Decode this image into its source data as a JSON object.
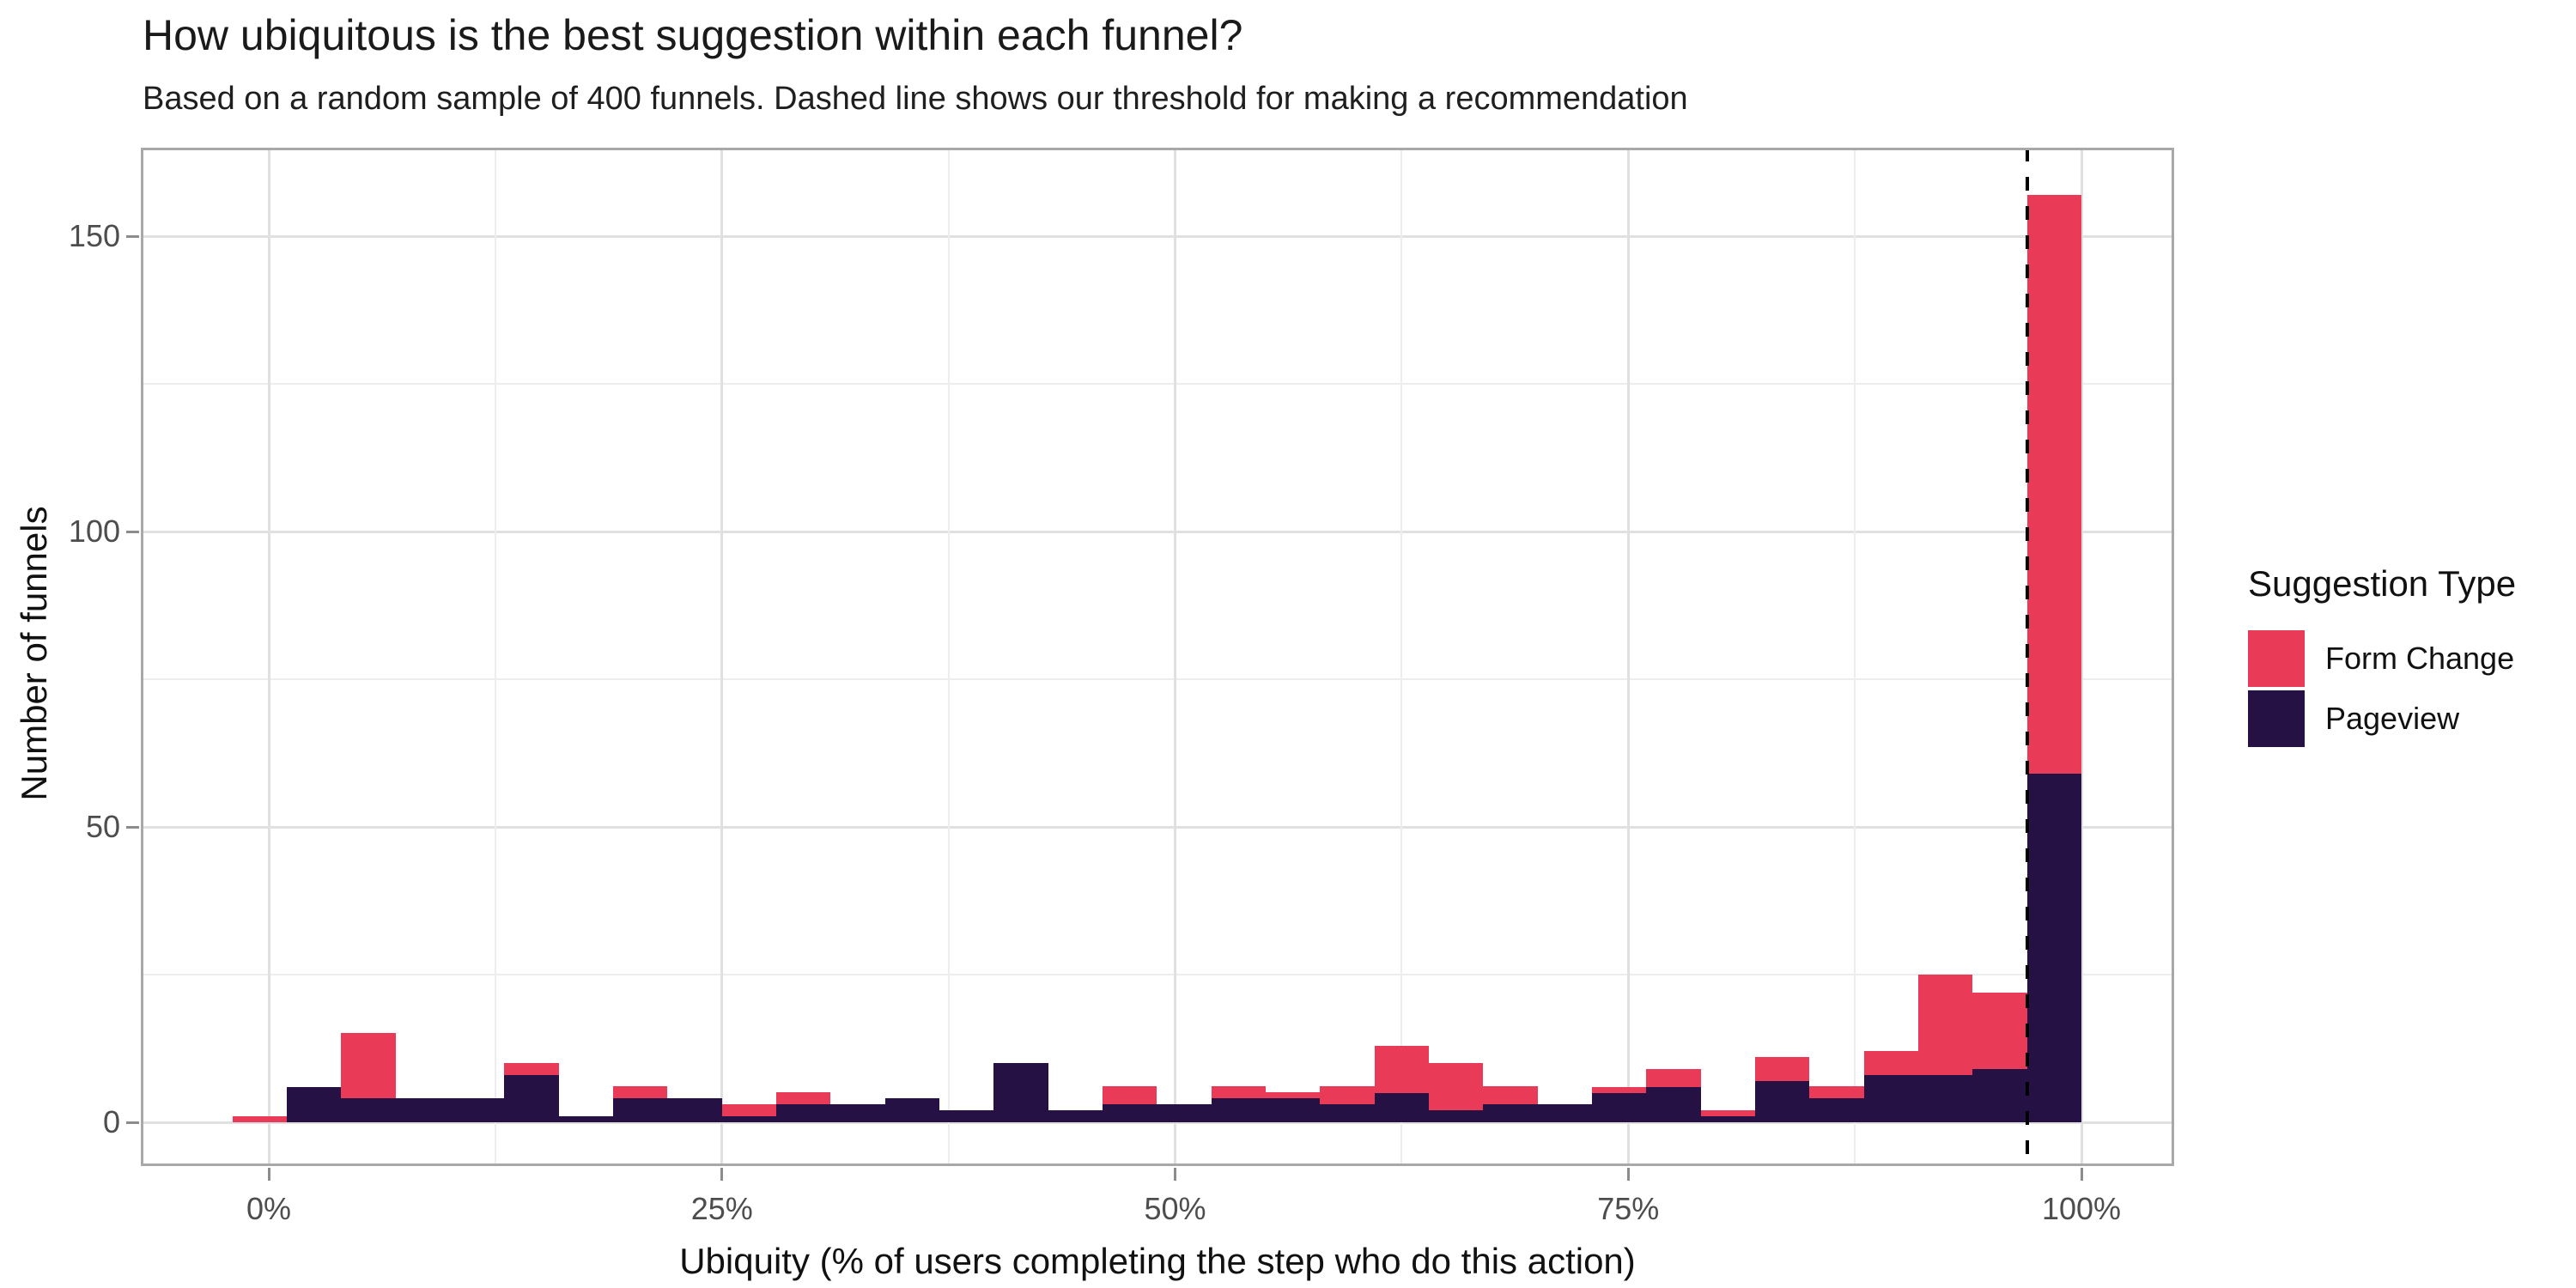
{
  "title": "How ubiquitous is the best suggestion within each funnel?",
  "subtitle": "Based on a random sample of 400 funnels. Dashed line shows our threshold for making a recommendation",
  "x_axis": {
    "title": "Ubiquity (% of users completing the step who do this action)",
    "tick_labels": [
      "0%",
      "25%",
      "50%",
      "75%",
      "100%"
    ],
    "tick_positions_pct": [
      0,
      25,
      50,
      75,
      100
    ],
    "minor_gridlines_pct": [
      12.5,
      37.5,
      62.5,
      87.5
    ]
  },
  "y_axis": {
    "title": "Number of funnels",
    "tick_labels": [
      "0",
      "50",
      "100",
      "150"
    ],
    "tick_values": [
      0,
      50,
      100,
      150
    ],
    "minor_gridlines": [
      25,
      75,
      125
    ]
  },
  "legend": {
    "title": "Suggestion Type",
    "items": [
      {
        "label": "Form Change",
        "color": "#e93a57"
      },
      {
        "label": "Pageview",
        "color": "#251144"
      }
    ]
  },
  "threshold_line": {
    "position_pct": 97,
    "color": "#000000",
    "style": "dashed",
    "meaning": "threshold for making a recommendation"
  },
  "colors": {
    "form_change": "#e93a57",
    "pageview": "#251144",
    "grid_major": "#e0e0e0",
    "grid_minor": "#ededed",
    "panel_border": "#a8a8a8",
    "tick_text": "#4d4d4d"
  },
  "chart_data": {
    "type": "bar",
    "subtype": "stacked-histogram",
    "title": "How ubiquitous is the best suggestion within each funnel?",
    "xlabel": "Ubiquity (% of users completing the step who do this action)",
    "ylabel": "Number of funnels",
    "bin_width_pct": 3,
    "bin_edges_pct": [
      -2,
      1,
      4,
      7,
      10,
      13,
      16,
      19,
      22,
      25,
      28,
      31,
      34,
      37,
      40,
      43,
      46,
      49,
      52,
      55,
      58,
      61,
      64,
      67,
      70,
      73,
      76,
      79,
      82,
      85,
      88,
      91,
      94,
      97,
      100
    ],
    "stack_order_bottom_to_top": [
      "Pageview",
      "Form Change"
    ],
    "series": [
      {
        "name": "Pageview",
        "color": "#251144",
        "values": [
          0,
          6,
          4,
          4,
          4,
          8,
          1,
          4,
          4,
          1,
          3,
          3,
          4,
          2,
          10,
          2,
          3,
          3,
          4,
          4,
          3,
          5,
          2,
          3,
          3,
          5,
          6,
          1,
          7,
          4,
          8,
          8,
          9,
          59
        ]
      },
      {
        "name": "Form Change",
        "color": "#e93a57",
        "values": [
          1,
          0,
          11,
          0,
          0,
          2,
          0,
          2,
          0,
          2,
          2,
          0,
          0,
          0,
          0,
          0,
          3,
          0,
          2,
          1,
          3,
          8,
          8,
          3,
          0,
          1,
          3,
          1,
          4,
          2,
          4,
          17,
          13,
          98
        ]
      }
    ],
    "xlim_pct": [
      -7,
      105
    ],
    "ylim": [
      0,
      165
    ],
    "grid": true,
    "legend_position": "right"
  }
}
